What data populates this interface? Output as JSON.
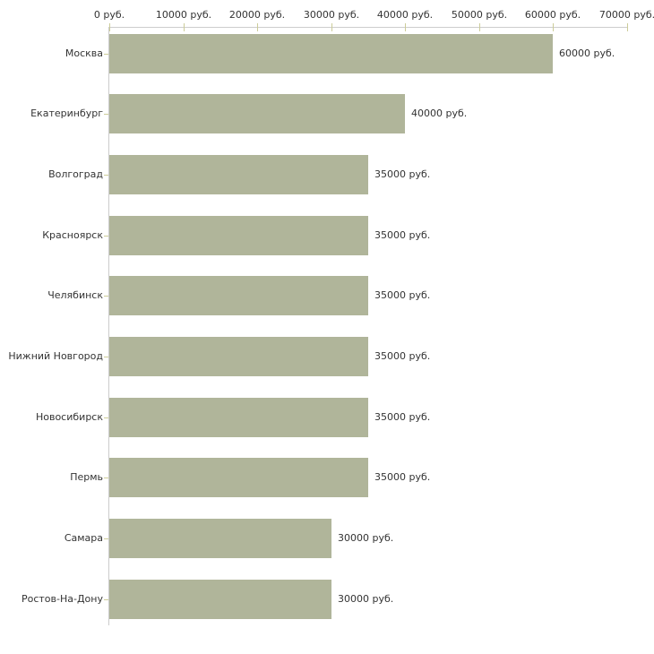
{
  "chart_data": {
    "type": "bar",
    "orientation": "horizontal",
    "title": "",
    "xlabel": "",
    "ylabel": "",
    "unit": "руб.",
    "xlim": [
      0,
      70000
    ],
    "grid": false,
    "legend": null,
    "categories": [
      "Москва",
      "Екатеринбург",
      "Волгоград",
      "Красноярск",
      "Челябинск",
      "Нижний Новгород",
      "Новосибирск",
      "Пермь",
      "Самара",
      "Ростов-На-Дону"
    ],
    "values": [
      60000,
      40000,
      35000,
      35000,
      35000,
      35000,
      35000,
      35000,
      30000,
      30000
    ],
    "value_labels": [
      "60000 руб.",
      "40000 руб.",
      "35000 руб.",
      "35000 руб.",
      "35000 руб.",
      "35000 руб.",
      "35000 руб.",
      "35000 руб.",
      "30000 руб.",
      "30000 руб."
    ],
    "x_ticks": [
      0,
      10000,
      20000,
      30000,
      40000,
      50000,
      60000,
      70000
    ],
    "x_tick_labels": [
      "0 руб.",
      "10000 руб.",
      "20000 руб.",
      "30000 руб.",
      "40000 руб.",
      "50000 руб.",
      "60000 руб.",
      "70000 руб."
    ],
    "colors": {
      "bar": "#b0b59a",
      "axis": "#cccccc",
      "tick": "#cccc99",
      "text": "#333333",
      "background": "#ffffff"
    }
  }
}
